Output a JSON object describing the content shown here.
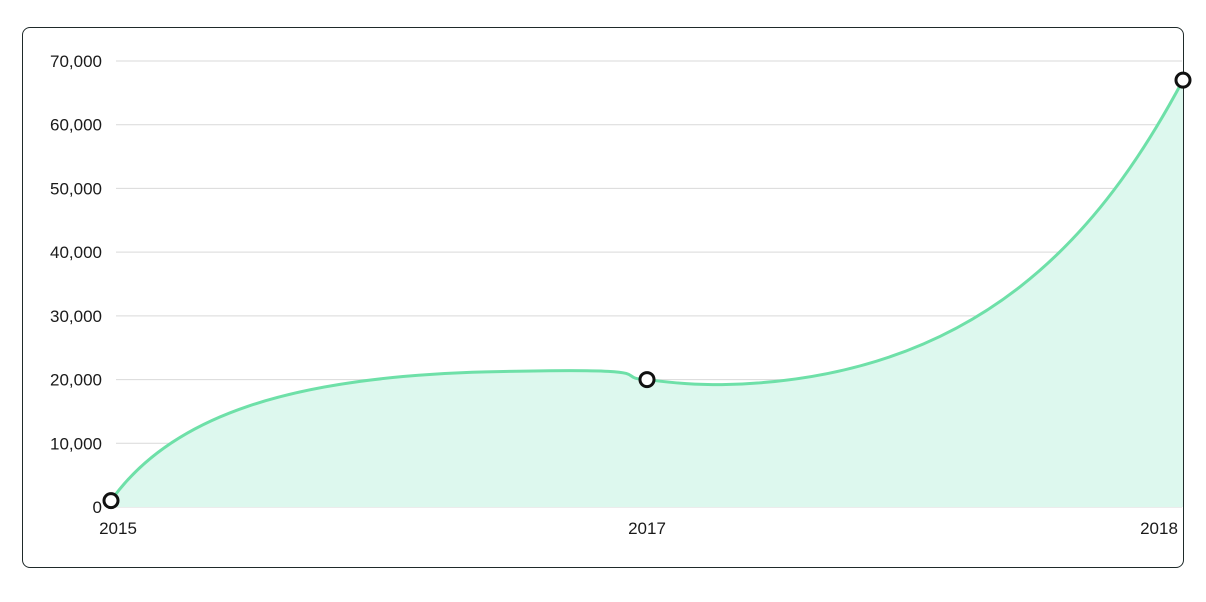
{
  "chart_data": {
    "type": "area",
    "x": [
      "2015",
      "2017",
      "2018"
    ],
    "series": [
      {
        "values": [
          1000,
          20000,
          67000
        ],
        "color": "#6ee0a8",
        "fill": "#ddf8ee"
      }
    ],
    "xlabel": "",
    "ylabel": "",
    "ylim": [
      0,
      70000
    ],
    "y_ticks": [
      0,
      10000,
      20000,
      30000,
      40000,
      50000,
      60000,
      70000
    ],
    "y_tick_labels": [
      "0",
      "10,000",
      "20,000",
      "30,000",
      "40,000",
      "50,000",
      "60,000",
      "70,000"
    ],
    "x_tick_labels": [
      "2015",
      "2017",
      "2018"
    ],
    "grid": true,
    "legend": "none",
    "colors": {
      "line": "#6ee0a8",
      "area": "#ddf8ee",
      "grid": "#d9d9d9",
      "marker_stroke": "#111111",
      "marker_fill": "#ffffff"
    }
  }
}
